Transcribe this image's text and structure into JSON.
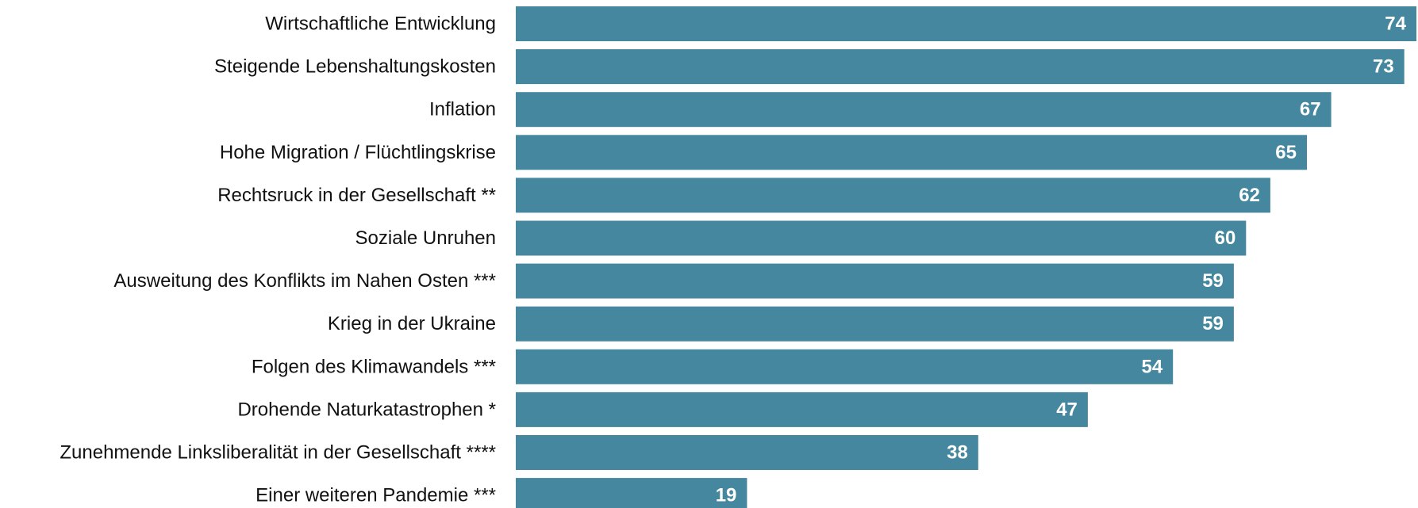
{
  "chart_data": {
    "type": "bar",
    "orientation": "horizontal",
    "title": "",
    "xlabel": "",
    "ylabel": "",
    "grid": false,
    "legend": "none",
    "xlim": [
      0,
      74
    ],
    "categories": [
      "Wirtschaftliche Entwicklung",
      "Steigende Lebenshaltungskosten",
      "Inflation",
      "Hohe Migration / Flüchtlingskrise",
      "Rechtsruck in der Gesellschaft **",
      "Soziale Unruhen",
      "Ausweitung des Konflikts im Nahen Osten ***",
      "Krieg in der Ukraine",
      "Folgen des Klimawandels ***",
      "Drohende Naturkatastrophen *",
      "Zunehmende Linksliberalität in der Gesellschaft ****",
      "Einer weiteren Pandemie ***"
    ],
    "values": [
      74,
      73,
      67,
      65,
      62,
      60,
      59,
      59,
      54,
      47,
      38,
      19
    ],
    "value_labels": [
      "74",
      "73",
      "67",
      "65",
      "62",
      "60",
      "59",
      "59",
      "54",
      "47",
      "38",
      "19"
    ],
    "bar_color": "#45879e",
    "value_label_color": "#ffffff",
    "category_label_color": "#111111"
  }
}
